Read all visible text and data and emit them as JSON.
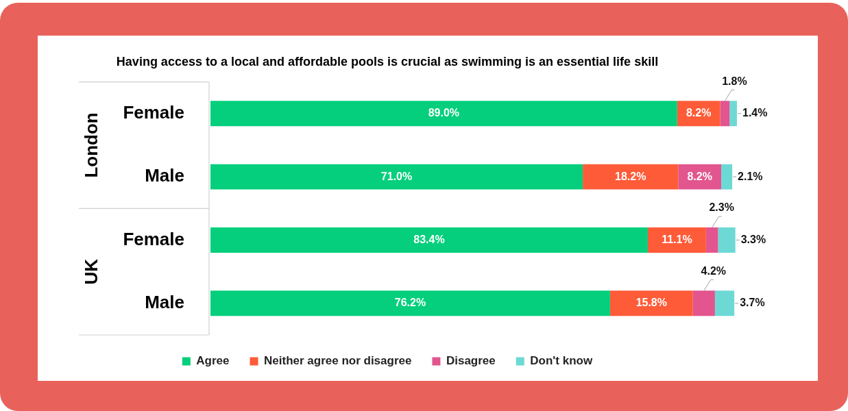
{
  "chart_data": {
    "type": "bar",
    "orientation": "horizontal",
    "stacked": true,
    "title": "Having access to a local and affordable pools is crucial as swimming is an essential life skill",
    "categories": [
      "Female",
      "Male",
      "Female",
      "Male"
    ],
    "annotations": [
      "London",
      "UK"
    ],
    "series": [
      {
        "name": "Agree",
        "color": "#05cf7c",
        "values": [
          89.0,
          71.0,
          83.4,
          76.2
        ],
        "value_labels": [
          "89.0%",
          "71.0%",
          "83.4%",
          "76.2%"
        ]
      },
      {
        "name": "Neither agree nor disagree",
        "color": "#fe5b38",
        "values": [
          8.2,
          18.2,
          11.1,
          15.8
        ],
        "value_labels": [
          "8.2%",
          "18.2%",
          "11.1%",
          "15.8%"
        ]
      },
      {
        "name": "Disagree",
        "color": "#e2558e",
        "values": [
          1.8,
          8.2,
          2.3,
          4.2
        ],
        "value_labels": [
          "1.8%",
          "8.2%",
          "2.3%",
          "4.2%"
        ]
      },
      {
        "name": "Don't know",
        "color": "#6dd9d5",
        "values": [
          1.4,
          2.1,
          3.3,
          3.7
        ],
        "value_labels": [
          "1.4%",
          "2.1%",
          "3.3%",
          "3.7%"
        ]
      }
    ],
    "grid": false,
    "legend": "bottom",
    "tick_labels": "y"
  }
}
